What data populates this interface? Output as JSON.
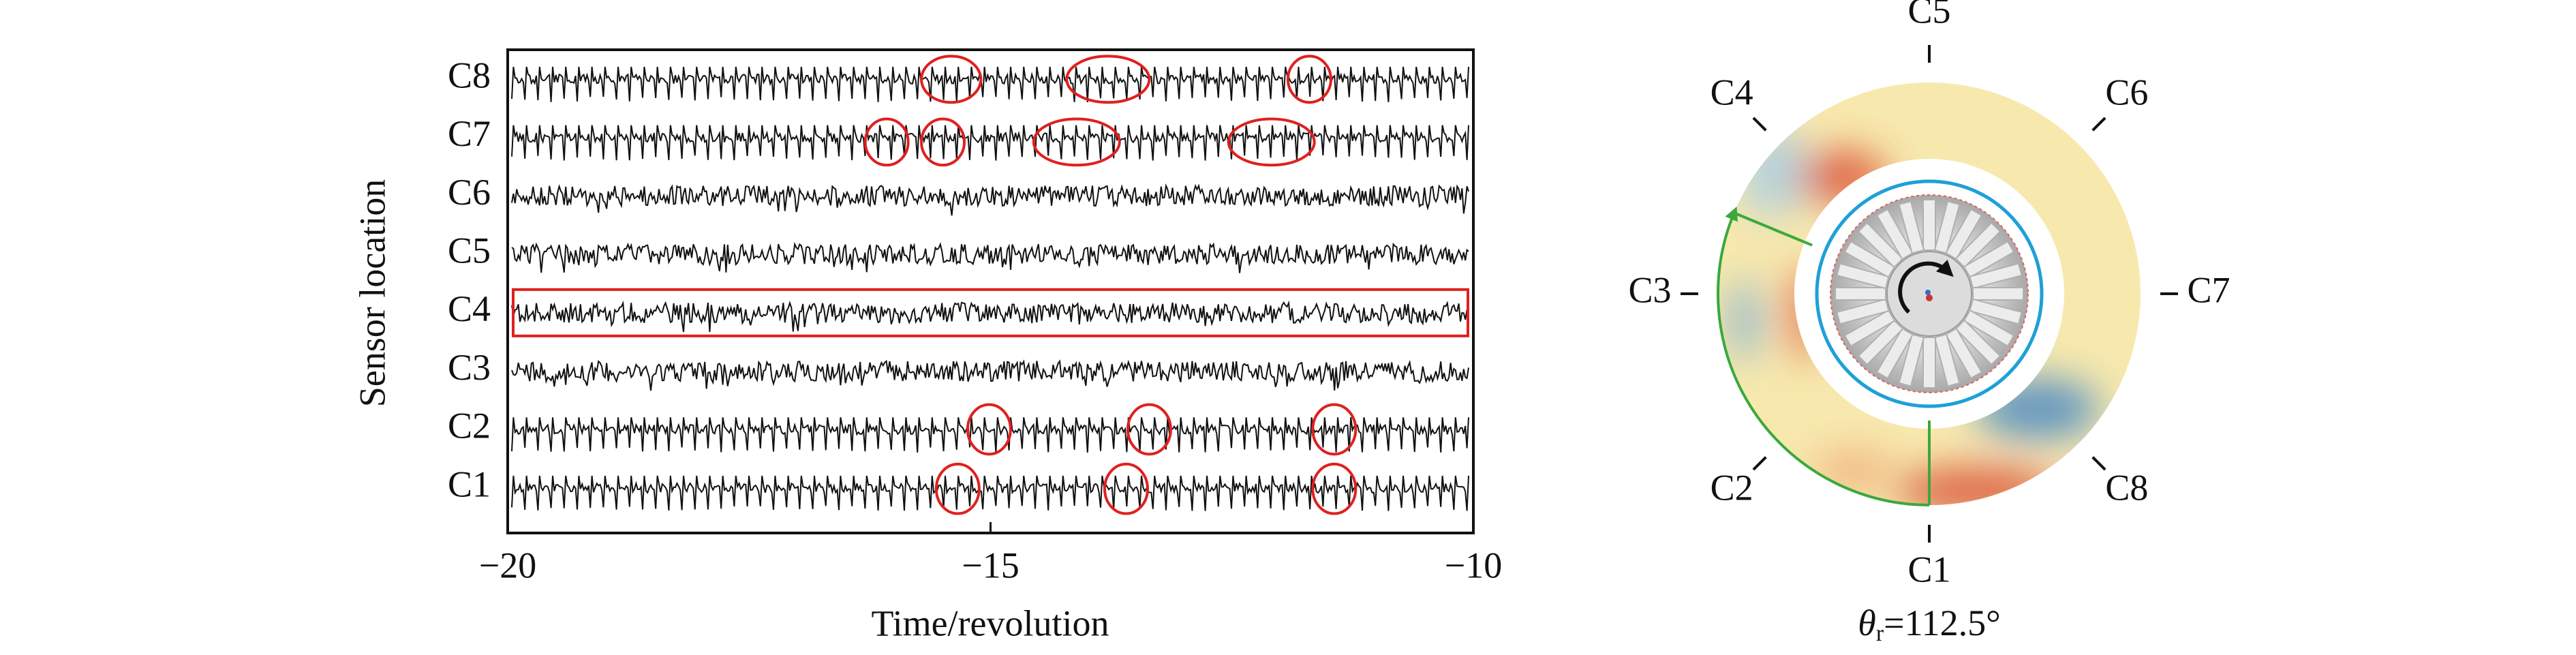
{
  "chart_data": [
    {
      "type": "line",
      "ylabel": "Sensor location",
      "xlabel": "Time/revolution",
      "categories": [
        "C1",
        "C2",
        "C3",
        "C4",
        "C5",
        "C6",
        "C7",
        "C8"
      ],
      "xlim": [
        -20,
        -10
      ],
      "xticks": [
        {
          "value": -20,
          "label": "−20"
        },
        {
          "value": -15,
          "label": "−15"
        },
        {
          "value": -10,
          "label": "−10"
        }
      ]
    },
    {
      "type": "polar",
      "sensors": [
        "C1",
        "C2",
        "C3",
        "C4",
        "C5",
        "C6",
        "C7",
        "C8"
      ],
      "rotation": {
        "symbol": "θ",
        "subscript": "r",
        "value": 112.5,
        "label": "=112.5°"
      }
    }
  ]
}
